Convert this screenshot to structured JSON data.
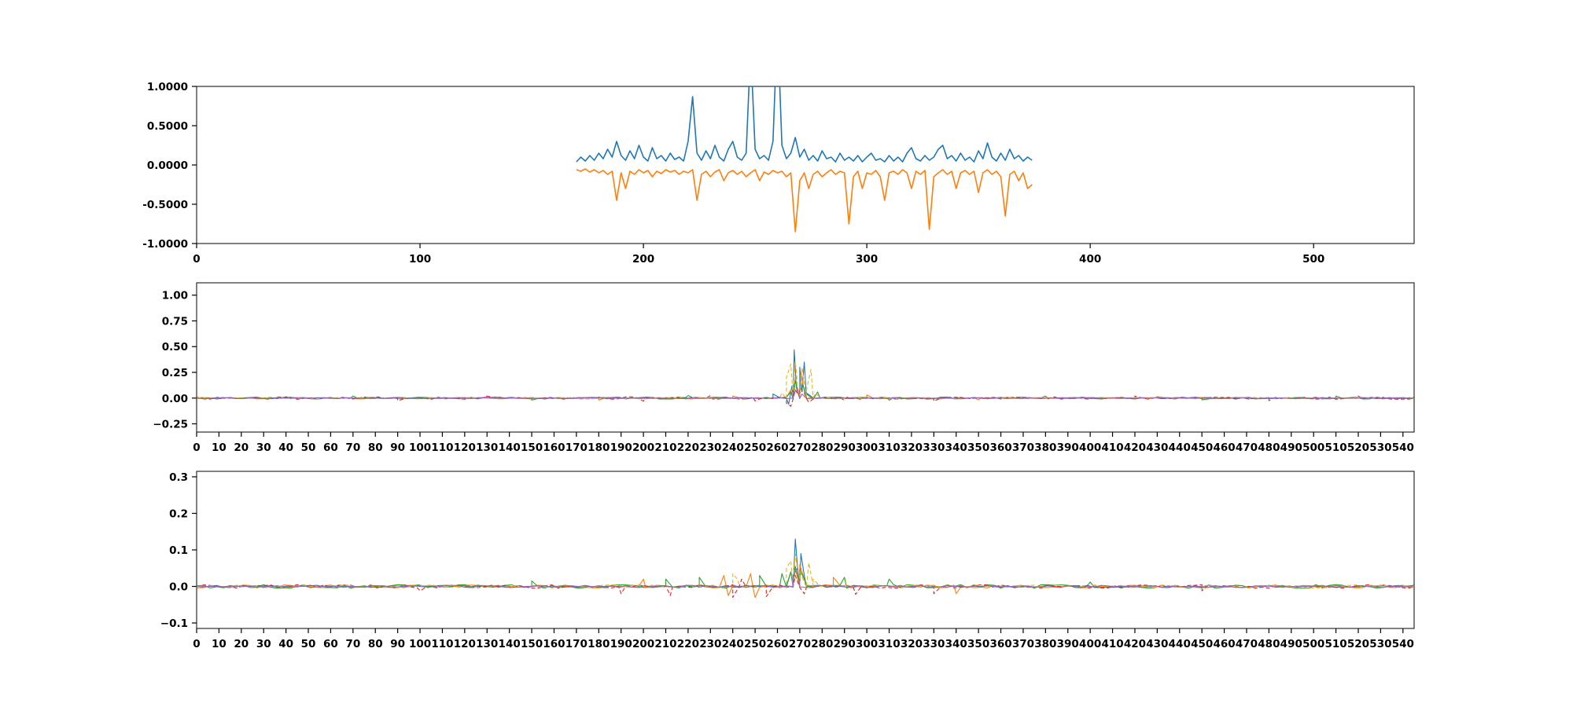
{
  "page": {
    "background": "#ffffff",
    "accent_blue": "#1f77b4",
    "accent_orange": "#ff7f0e",
    "accent_green": "#2ca02c",
    "accent_red": "#d62728",
    "accent_gold": "#e8b422",
    "accent_purple": "#9467bd"
  },
  "chart_data": [
    {
      "type": "line",
      "title": "",
      "xlabel": "",
      "ylabel": "",
      "grid": false,
      "legend": null,
      "xlim": [
        0,
        545
      ],
      "ylim": [
        -1.0,
        1.0
      ],
      "xticks": [
        0,
        100,
        200,
        300,
        400,
        500
      ],
      "ytick_values": [
        1.0,
        0.5,
        0.0,
        -0.5,
        -1.0
      ],
      "ytick_labels": [
        "1.0000",
        "0.5000",
        "0.0000",
        "-0.5000",
        "-1.0000"
      ],
      "series": [
        {
          "name": "blue-positive-trace",
          "color": "#1f77b4",
          "width": 1.6,
          "x0": 170,
          "dx": 2,
          "y": [
            0.04,
            0.1,
            0.05,
            0.12,
            0.06,
            0.15,
            0.08,
            0.2,
            0.1,
            0.3,
            0.12,
            0.06,
            0.18,
            0.08,
            0.25,
            0.1,
            0.05,
            0.22,
            0.08,
            0.12,
            0.05,
            0.15,
            0.07,
            0.1,
            0.05,
            0.3,
            0.87,
            0.15,
            0.06,
            0.18,
            0.08,
            0.25,
            0.1,
            0.05,
            0.2,
            0.3,
            0.1,
            0.06,
            0.15,
            1.5,
            0.2,
            0.08,
            0.12,
            0.06,
            0.3,
            1.8,
            0.25,
            0.08,
            0.15,
            0.35,
            0.1,
            0.2,
            0.06,
            0.12,
            0.05,
            0.18,
            0.08,
            0.1,
            0.04,
            0.15,
            0.06,
            0.1,
            0.05,
            0.12,
            0.04,
            0.1,
            0.15,
            0.06,
            0.08,
            0.04,
            0.12,
            0.05,
            0.1,
            0.04,
            0.15,
            0.22,
            0.08,
            0.05,
            0.12,
            0.06,
            0.1,
            0.2,
            0.25,
            0.08,
            0.12,
            0.05,
            0.15,
            0.06,
            0.1,
            0.04,
            0.18,
            0.08,
            0.28,
            0.1,
            0.05,
            0.15,
            0.06,
            0.2,
            0.08,
            0.12,
            0.05,
            0.1,
            0.06
          ]
        },
        {
          "name": "orange-negative-trace",
          "color": "#ff7f0e",
          "width": 1.6,
          "x0": 170,
          "dx": 2,
          "y": [
            -0.06,
            -0.08,
            -0.05,
            -0.09,
            -0.06,
            -0.1,
            -0.07,
            -0.12,
            -0.08,
            -0.45,
            -0.1,
            -0.3,
            -0.08,
            -0.12,
            -0.06,
            -0.1,
            -0.07,
            -0.15,
            -0.08,
            -0.11,
            -0.06,
            -0.09,
            -0.07,
            -0.12,
            -0.08,
            -0.1,
            -0.06,
            -0.45,
            -0.12,
            -0.08,
            -0.15,
            -0.09,
            -0.06,
            -0.2,
            -0.1,
            -0.07,
            -0.12,
            -0.08,
            -0.15,
            -0.1,
            -0.06,
            -0.2,
            -0.09,
            -0.12,
            -0.07,
            -0.1,
            -0.08,
            -0.15,
            -0.1,
            -0.85,
            -0.2,
            -0.1,
            -0.3,
            -0.12,
            -0.08,
            -0.15,
            -0.1,
            -0.06,
            -0.12,
            -0.08,
            -0.1,
            -0.75,
            -0.15,
            -0.08,
            -0.3,
            -0.1,
            -0.12,
            -0.07,
            -0.15,
            -0.45,
            -0.1,
            -0.08,
            -0.12,
            -0.06,
            -0.1,
            -0.3,
            -0.08,
            -0.12,
            -0.07,
            -0.82,
            -0.15,
            -0.1,
            -0.06,
            -0.12,
            -0.08,
            -0.3,
            -0.1,
            -0.07,
            -0.12,
            -0.08,
            -0.35,
            -0.1,
            -0.06,
            -0.12,
            -0.08,
            -0.15,
            -0.65,
            -0.12,
            -0.08,
            -0.2,
            -0.1,
            -0.3,
            -0.25
          ]
        }
      ]
    },
    {
      "type": "line",
      "title": "",
      "xlabel": "",
      "ylabel": "",
      "grid": false,
      "legend": null,
      "xlim": [
        0,
        545
      ],
      "ylim": [
        -0.33,
        1.12
      ],
      "xticks": [
        0,
        10,
        20,
        30,
        40,
        50,
        60,
        70,
        80,
        90,
        100,
        110,
        120,
        130,
        140,
        150,
        160,
        170,
        180,
        190,
        200,
        210,
        220,
        230,
        240,
        250,
        260,
        270,
        280,
        290,
        300,
        310,
        320,
        330,
        340,
        350,
        360,
        370,
        380,
        390,
        400,
        410,
        420,
        430,
        440,
        450,
        460,
        470,
        480,
        490,
        500,
        510,
        520,
        530,
        540
      ],
      "ytick_values": [
        1.0,
        0.75,
        0.5,
        0.25,
        0.0,
        -0.25
      ],
      "ytick_labels": [
        "1.00",
        "0.75",
        "0.50",
        "0.25",
        "0.00",
        "−0.25"
      ],
      "series": [
        {
          "name": "blue-residual",
          "color": "#1f77b4",
          "width": 1.1,
          "noise": {
            "x0": 0,
            "x1": 545,
            "step": 3,
            "amp": 0.006,
            "seed": 11
          },
          "spikes": [
            [
              258,
              0.04
            ],
            [
              265,
              -0.06
            ],
            [
              266.5,
              0.12
            ],
            [
              267.5,
              0.47
            ],
            [
              268.5,
              0.1
            ],
            [
              270,
              0.3
            ],
            [
              271,
              0.06
            ],
            [
              272,
              0.35
            ],
            [
              273,
              0.05
            ]
          ]
        },
        {
          "name": "orange-residual",
          "color": "#ff7f0e",
          "width": 1.1,
          "noise": {
            "x0": 0,
            "x1": 545,
            "step": 3,
            "amp": 0.008,
            "seed": 22
          },
          "spikes": [
            [
              40,
              0.015
            ],
            [
              180,
              -0.02
            ],
            [
              240,
              0.02
            ],
            [
              266,
              0.08
            ],
            [
              268,
              0.2
            ],
            [
              269,
              0.05
            ],
            [
              270.5,
              0.25
            ],
            [
              272,
              0.07
            ],
            [
              300,
              0.03
            ],
            [
              350,
              -0.018
            ],
            [
              430,
              0.015
            ]
          ]
        },
        {
          "name": "green-residual",
          "color": "#2ca02c",
          "width": 1.1,
          "noise": {
            "x0": 0,
            "x1": 545,
            "step": 3,
            "amp": 0.01,
            "seed": 33
          },
          "spikes": [
            [
              70,
              0.02
            ],
            [
              150,
              -0.02
            ],
            [
              220,
              0.025
            ],
            [
              266,
              0.06
            ],
            [
              268,
              0.17
            ],
            [
              270,
              0.08
            ],
            [
              271.5,
              0.12
            ],
            [
              273,
              0.04
            ],
            [
              278,
              0.06
            ],
            [
              310,
              -0.02
            ],
            [
              380,
              0.02
            ],
            [
              450,
              -0.018
            ],
            [
              510,
              0.02
            ]
          ]
        },
        {
          "name": "red-residual",
          "color": "#d62728",
          "width": 1.1,
          "dash": "5 3",
          "noise": {
            "x0": 0,
            "x1": 545,
            "step": 3,
            "amp": 0.012,
            "seed": 44
          },
          "spikes": [
            [
              90,
              -0.025
            ],
            [
              130,
              0.02
            ],
            [
              200,
              -0.03
            ],
            [
              230,
              0.025
            ],
            [
              250,
              -0.028
            ],
            [
              264,
              -0.05
            ],
            [
              266,
              -0.08
            ],
            [
              268,
              0.08
            ],
            [
              270,
              0.1
            ],
            [
              272,
              0.05
            ],
            [
              274,
              -0.04
            ],
            [
              290,
              -0.022
            ],
            [
              330,
              -0.03
            ],
            [
              420,
              0.02
            ],
            [
              480,
              -0.025
            ],
            [
              520,
              0.02
            ]
          ]
        },
        {
          "name": "gold-residual",
          "color": "#e8b422",
          "width": 1.1,
          "dash": "5 3",
          "noise": {
            "x0": 0,
            "x1": 545,
            "step": 3,
            "amp": 0.007,
            "seed": 55
          },
          "spikes": [
            [
              262,
              0.05
            ],
            [
              264,
              0.2
            ],
            [
              266,
              0.33
            ],
            [
              267,
              0.1
            ],
            [
              268,
              0.36
            ],
            [
              269,
              0.12
            ],
            [
              271,
              0.3
            ],
            [
              273,
              0.08
            ],
            [
              275,
              0.28
            ],
            [
              277,
              0.05
            ]
          ]
        },
        {
          "name": "purple-residual",
          "color": "#9467bd",
          "width": 1.1,
          "noise": {
            "x0": 0,
            "x1": 545,
            "step": 3,
            "amp": 0.005,
            "seed": 66
          },
          "spikes": [
            [
              267,
              0.05
            ],
            [
              269,
              0.08
            ],
            [
              271,
              0.04
            ]
          ]
        }
      ]
    },
    {
      "type": "line",
      "title": "",
      "xlabel": "",
      "ylabel": "",
      "grid": false,
      "legend": null,
      "xlim": [
        0,
        545
      ],
      "ylim": [
        -0.115,
        0.315
      ],
      "xticks": [
        0,
        10,
        20,
        30,
        40,
        50,
        60,
        70,
        80,
        90,
        100,
        110,
        120,
        130,
        140,
        150,
        160,
        170,
        180,
        190,
        200,
        210,
        220,
        230,
        240,
        250,
        260,
        270,
        280,
        290,
        300,
        310,
        320,
        330,
        340,
        350,
        360,
        370,
        380,
        390,
        400,
        410,
        420,
        430,
        440,
        450,
        460,
        470,
        480,
        490,
        500,
        510,
        520,
        530,
        540
      ],
      "ytick_values": [
        0.3,
        0.2,
        0.1,
        0.0,
        -0.1
      ],
      "ytick_labels": [
        "0.3",
        "0.2",
        "0.1",
        "0.0",
        "−0.1"
      ],
      "series": [
        {
          "name": "blue-residual",
          "color": "#1f77b4",
          "width": 1.1,
          "noise": {
            "x0": 0,
            "x1": 545,
            "step": 3,
            "amp": 0.003,
            "seed": 12
          },
          "spikes": [
            [
              266,
              0.04
            ],
            [
              268,
              0.13
            ],
            [
              269,
              0.05
            ],
            [
              270.5,
              0.09
            ],
            [
              272,
              0.03
            ]
          ]
        },
        {
          "name": "orange-residual",
          "color": "#ff7f0e",
          "width": 1.1,
          "noise": {
            "x0": 0,
            "x1": 545,
            "step": 3,
            "amp": 0.004,
            "seed": 23
          },
          "spikes": [
            [
              200,
              0.02
            ],
            [
              236,
              0.03
            ],
            [
              238,
              -0.025
            ],
            [
              248,
              0.035
            ],
            [
              250,
              -0.03
            ],
            [
              268,
              0.05
            ],
            [
              270,
              0.06
            ],
            [
              272,
              0.02
            ],
            [
              285,
              0.025
            ],
            [
              340,
              -0.02
            ]
          ]
        },
        {
          "name": "green-residual",
          "color": "#2ca02c",
          "width": 1.1,
          "noise": {
            "x0": 0,
            "x1": 545,
            "step": 3,
            "amp": 0.005,
            "seed": 34
          },
          "spikes": [
            [
              150,
              0.015
            ],
            [
              210,
              0.02
            ],
            [
              225,
              0.025
            ],
            [
              252,
              0.03
            ],
            [
              262,
              0.035
            ],
            [
              266,
              0.04
            ],
            [
              268,
              0.055
            ],
            [
              270,
              0.045
            ],
            [
              272,
              0.02
            ],
            [
              290,
              0.025
            ],
            [
              310,
              0.02
            ],
            [
              400,
              0.012
            ]
          ]
        },
        {
          "name": "red-residual",
          "color": "#d62728",
          "width": 1.1,
          "dash": "5 3",
          "noise": {
            "x0": 0,
            "x1": 545,
            "step": 3,
            "amp": 0.005,
            "seed": 45
          },
          "spikes": [
            [
              100,
              -0.012
            ],
            [
              190,
              -0.02
            ],
            [
              212,
              -0.025
            ],
            [
              240,
              -0.03
            ],
            [
              244,
              0.02
            ],
            [
              255,
              -0.028
            ],
            [
              268,
              0.03
            ],
            [
              272,
              -0.02
            ],
            [
              295,
              -0.022
            ],
            [
              330,
              -0.02
            ],
            [
              450,
              -0.012
            ]
          ]
        },
        {
          "name": "gold-residual",
          "color": "#e8b422",
          "width": 1.1,
          "dash": "5 3",
          "noise": {
            "x0": 0,
            "x1": 545,
            "step": 3,
            "amp": 0.004,
            "seed": 56
          },
          "spikes": [
            [
              240,
              0.035
            ],
            [
              242,
              0.02
            ],
            [
              264,
              0.05
            ],
            [
              266,
              0.07
            ],
            [
              268,
              0.09
            ],
            [
              270,
              0.04
            ],
            [
              274,
              0.065
            ],
            [
              276,
              0.02
            ]
          ]
        },
        {
          "name": "purple-residual",
          "color": "#9467bd",
          "width": 1.1,
          "noise": {
            "x0": 0,
            "x1": 545,
            "step": 3,
            "amp": 0.003,
            "seed": 67
          },
          "spikes": [
            [
              267,
              0.03
            ],
            [
              269,
              0.05
            ]
          ]
        }
      ]
    }
  ]
}
